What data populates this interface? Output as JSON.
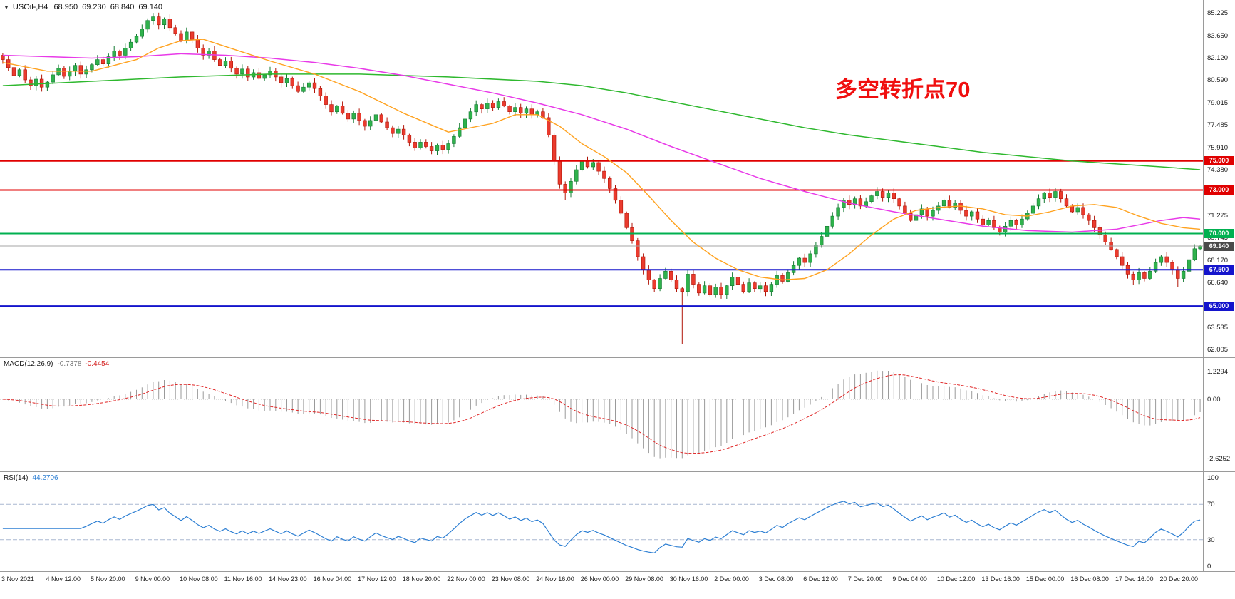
{
  "header": {
    "collapse_icon": "▼",
    "symbol_title": "USOil-,H4",
    "ohlc": {
      "open": "68.950",
      "high": "69.230",
      "low": "68.840",
      "close": "69.140"
    }
  },
  "annotation": {
    "text": "多空转折点70",
    "color": "#f00f0f"
  },
  "colors": {
    "candle_up": "#2fb24c",
    "candle_up_stroke": "#157a33",
    "candle_down": "#ea3b2e",
    "candle_down_stroke": "#b01508",
    "ma_green": "#2eb82e",
    "ma_magenta": "#e83ae8",
    "ma_orange": "#ffa21f",
    "macd_hist": "#9a9a9a",
    "macd_signal": "#e02727",
    "rsi_line": "#2d7fd3",
    "rsi_level": "#a9b7d1",
    "separator": "#9a9a9a",
    "grid_dot": "#c0c0c0"
  },
  "main_axis": {
    "max": 85.225,
    "min": 62.005,
    "ticks": [
      "85.225",
      "83.650",
      "82.120",
      "80.590",
      "79.015",
      "77.485",
      "75.910",
      "74.380",
      "72.850",
      "71.275",
      "69.745",
      "68.170",
      "66.640",
      "65.110",
      "63.535",
      "62.005"
    ]
  },
  "hlines": [
    {
      "price": 75.0,
      "label": "75.000",
      "color": "#e00000"
    },
    {
      "price": 73.0,
      "label": "73.000",
      "color": "#e00000"
    },
    {
      "price": 70.0,
      "label": "70.000",
      "color": "#00b050"
    },
    {
      "price": 67.5,
      "label": "67.500",
      "color": "#1414cc"
    },
    {
      "price": 65.0,
      "label": "65.000",
      "color": "#1414cc"
    }
  ],
  "price_line": {
    "price": 69.14,
    "label": "69.140",
    "line_color": "#a6a6a6",
    "label_bg": "#4a4a4a"
  },
  "chart_data": {
    "type": "candlestick+indicators",
    "symbol": "USOil",
    "timeframe": "H4",
    "bars_per_label": 8,
    "x_labels": [
      "3 Nov 2021",
      "4 Nov 12:00",
      "5 Nov 20:00",
      "9 Nov 00:00",
      "10 Nov 08:00",
      "11 Nov 16:00",
      "14 Nov 23:00",
      "16 Nov 04:00",
      "17 Nov 12:00",
      "18 Nov 20:00",
      "22 Nov 00:00",
      "23 Nov 08:00",
      "24 Nov 16:00",
      "26 Nov 00:00",
      "29 Nov 08:00",
      "30 Nov 16:00",
      "2 Dec 00:00",
      "3 Dec 08:00",
      "6 Dec 12:00",
      "7 Dec 20:00",
      "9 Dec 04:00",
      "10 Dec 12:00",
      "13 Dec 16:00",
      "15 Dec 00:00",
      "16 Dec 08:00",
      "17 Dec 16:00",
      "20 Dec 20:00"
    ],
    "first_open": 82.3,
    "closes": [
      82.0,
      81.45,
      80.9,
      81.3,
      80.6,
      80.2,
      80.65,
      80.1,
      80.45,
      80.95,
      81.4,
      80.85,
      81.2,
      81.6,
      81.0,
      81.3,
      81.65,
      82.0,
      81.7,
      82.2,
      82.6,
      82.3,
      82.8,
      83.2,
      83.6,
      84.1,
      84.7,
      84.95,
      84.4,
      84.8,
      84.2,
      83.8,
      83.3,
      83.9,
      83.4,
      82.8,
      82.3,
      82.6,
      82.0,
      81.6,
      81.9,
      81.4,
      81.0,
      81.35,
      80.8,
      81.1,
      80.7,
      80.95,
      81.2,
      80.8,
      80.4,
      80.7,
      80.2,
      79.8,
      80.1,
      80.4,
      80.0,
      79.5,
      78.9,
      78.4,
      78.8,
      78.3,
      77.9,
      78.3,
      77.8,
      77.4,
      77.8,
      78.2,
      77.7,
      77.3,
      76.9,
      77.2,
      76.8,
      76.3,
      75.9,
      76.3,
      76.0,
      75.7,
      76.1,
      75.8,
      76.2,
      76.7,
      77.3,
      77.9,
      78.4,
      78.9,
      78.6,
      79.0,
      78.7,
      79.1,
      78.8,
      78.4,
      78.7,
      78.3,
      78.6,
      78.2,
      78.4,
      78.0,
      76.8,
      75.0,
      73.4,
      72.8,
      73.6,
      74.4,
      75.0,
      74.6,
      74.9,
      74.3,
      73.8,
      73.1,
      72.3,
      71.4,
      70.4,
      69.5,
      68.4,
      67.5,
      66.8,
      66.2,
      66.9,
      67.4,
      66.8,
      66.2,
      66.0,
      67.2,
      66.5,
      65.9,
      66.4,
      65.8,
      66.3,
      65.8,
      66.4,
      67.0,
      66.5,
      66.0,
      66.6,
      66.2,
      66.4,
      66.0,
      66.5,
      67.1,
      66.7,
      67.3,
      67.8,
      68.3,
      68.0,
      68.6,
      69.2,
      69.8,
      70.5,
      71.2,
      71.8,
      72.3,
      72.0,
      72.4,
      71.9,
      72.2,
      72.6,
      72.9,
      72.5,
      72.8,
      72.4,
      71.9,
      71.4,
      70.9,
      71.3,
      71.7,
      71.2,
      71.6,
      71.9,
      72.3,
      71.8,
      72.1,
      71.6,
      71.2,
      71.5,
      71.0,
      70.6,
      70.9,
      70.4,
      70.1,
      70.5,
      70.9,
      70.6,
      71.0,
      71.4,
      71.9,
      72.4,
      72.8,
      72.5,
      72.9,
      72.4,
      71.9,
      71.5,
      71.8,
      71.3,
      70.9,
      70.4,
      69.9,
      69.4,
      68.9,
      68.4,
      67.8,
      67.2,
      66.8,
      67.3,
      66.9,
      67.4,
      68.0,
      68.4,
      68.0,
      67.5,
      66.9,
      67.4,
      68.2,
      68.95,
      69.14
    ],
    "wick_overrides": {
      "27": {
        "high": 85.22
      },
      "101": {
        "low": 72.3
      },
      "122": {
        "low": 62.4
      },
      "211": {
        "low": 66.3
      },
      "215": {
        "high": 69.23,
        "low": 68.84
      }
    },
    "ma_green": [
      [
        0,
        80.2
      ],
      [
        16,
        80.5
      ],
      [
        32,
        80.8
      ],
      [
        48,
        81.0
      ],
      [
        64,
        81.0
      ],
      [
        80,
        80.8
      ],
      [
        96,
        80.5
      ],
      [
        104,
        80.2
      ],
      [
        112,
        79.7
      ],
      [
        120,
        79.1
      ],
      [
        128,
        78.5
      ],
      [
        136,
        77.9
      ],
      [
        144,
        77.3
      ],
      [
        152,
        76.8
      ],
      [
        160,
        76.4
      ],
      [
        168,
        76.0
      ],
      [
        176,
        75.6
      ],
      [
        184,
        75.3
      ],
      [
        192,
        75.0
      ],
      [
        200,
        74.8
      ],
      [
        208,
        74.6
      ],
      [
        215,
        74.4
      ]
    ],
    "ma_magenta": [
      [
        0,
        82.3
      ],
      [
        8,
        82.2
      ],
      [
        16,
        82.1
      ],
      [
        24,
        82.2
      ],
      [
        32,
        82.4
      ],
      [
        40,
        82.3
      ],
      [
        48,
        82.1
      ],
      [
        56,
        81.8
      ],
      [
        64,
        81.4
      ],
      [
        72,
        80.9
      ],
      [
        80,
        80.3
      ],
      [
        88,
        79.7
      ],
      [
        96,
        79.0
      ],
      [
        104,
        78.2
      ],
      [
        112,
        77.2
      ],
      [
        120,
        76.0
      ],
      [
        128,
        74.9
      ],
      [
        136,
        73.8
      ],
      [
        144,
        72.9
      ],
      [
        152,
        72.1
      ],
      [
        160,
        71.5
      ],
      [
        168,
        71.0
      ],
      [
        176,
        70.5
      ],
      [
        184,
        70.2
      ],
      [
        192,
        70.1
      ],
      [
        200,
        70.3
      ],
      [
        204,
        70.6
      ],
      [
        208,
        70.9
      ],
      [
        212,
        71.1
      ],
      [
        215,
        71.0
      ]
    ],
    "ma_orange": [
      [
        0,
        81.8
      ],
      [
        8,
        81.2
      ],
      [
        16,
        81.2
      ],
      [
        24,
        82.0
      ],
      [
        28,
        82.8
      ],
      [
        32,
        83.3
      ],
      [
        36,
        83.4
      ],
      [
        40,
        82.9
      ],
      [
        48,
        81.9
      ],
      [
        56,
        81.0
      ],
      [
        64,
        79.8
      ],
      [
        72,
        78.3
      ],
      [
        80,
        77.0
      ],
      [
        88,
        77.6
      ],
      [
        92,
        78.2
      ],
      [
        96,
        78.2
      ],
      [
        100,
        77.4
      ],
      [
        104,
        76.2
      ],
      [
        108,
        75.3
      ],
      [
        112,
        74.2
      ],
      [
        116,
        72.6
      ],
      [
        120,
        70.9
      ],
      [
        124,
        69.4
      ],
      [
        128,
        68.3
      ],
      [
        132,
        67.5
      ],
      [
        136,
        67.0
      ],
      [
        140,
        66.8
      ],
      [
        144,
        66.9
      ],
      [
        148,
        67.5
      ],
      [
        152,
        68.6
      ],
      [
        156,
        69.9
      ],
      [
        160,
        71.0
      ],
      [
        164,
        71.6
      ],
      [
        168,
        71.8
      ],
      [
        172,
        71.9
      ],
      [
        176,
        71.7
      ],
      [
        180,
        71.3
      ],
      [
        184,
        71.2
      ],
      [
        188,
        71.5
      ],
      [
        192,
        71.9
      ],
      [
        196,
        72.0
      ],
      [
        200,
        71.8
      ],
      [
        204,
        71.2
      ],
      [
        208,
        70.7
      ],
      [
        212,
        70.4
      ],
      [
        215,
        70.3
      ]
    ],
    "macd": {
      "name": "MACD(12,26,9)",
      "value_main": "-0.7378",
      "value_signal": "-0.4454",
      "fast": 12,
      "slow": 26,
      "signal": 9,
      "ticks": [
        "1.2294",
        "0.00",
        "-2.6252"
      ],
      "range": [
        -2.9,
        1.45
      ]
    },
    "rsi": {
      "name": "RSI(14)",
      "value": "44.2706",
      "period": 14,
      "ticks": [
        "100",
        "70",
        "30",
        "0"
      ],
      "levels": [
        70,
        30
      ]
    }
  }
}
